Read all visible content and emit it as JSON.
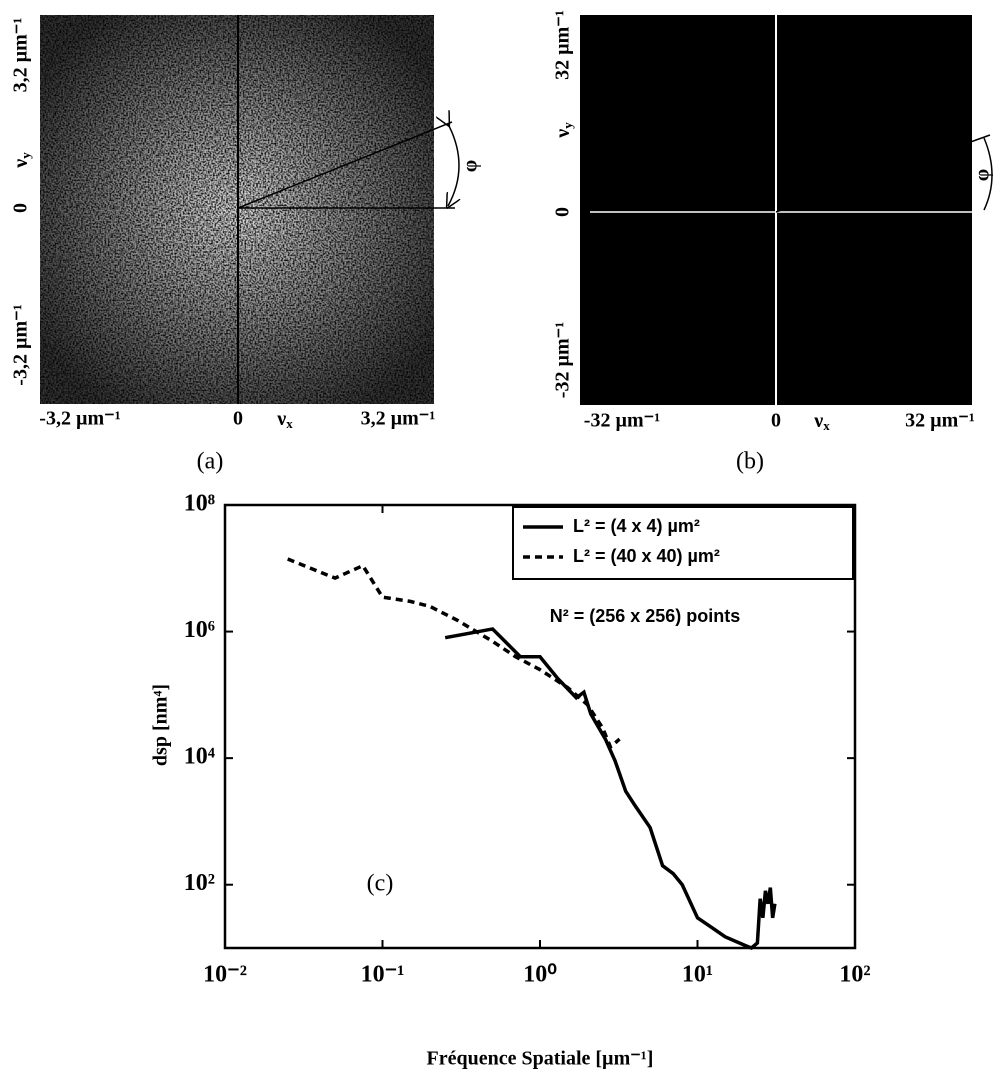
{
  "panel_a": {
    "y_top": "3,2 µm⁻¹",
    "y_axis": "ν",
    "y_axis_sub": "y",
    "y_zero": "0",
    "y_bottom": "-3,2 µm⁻¹",
    "x_left": "-3,2 µm⁻¹",
    "x_zero": "0",
    "x_axis": "ν",
    "x_axis_sub": "x",
    "x_right": "3,2 µm⁻¹",
    "angle": "φ",
    "caption": "(a)"
  },
  "panel_b": {
    "y_top": "32 µm⁻¹",
    "y_axis": "ν",
    "y_axis_sub": "y",
    "y_zero": "0",
    "y_bottom": "-32 µm⁻¹",
    "x_left": "-32 µm⁻¹",
    "x_zero": "0",
    "x_axis": "ν",
    "x_axis_sub": "x",
    "x_right": "32 µm⁻¹",
    "angle": "φ",
    "caption": "(b)"
  },
  "chart_data": {
    "type": "line",
    "xlabel": "Fréquence Spatiale [µm⁻¹]",
    "ylabel": "dsp [nm⁴]",
    "annotations": [
      "N² = (256 x 256) points",
      "(c)"
    ],
    "xscale": "log",
    "yscale": "log",
    "xlim": [
      0.01,
      100
    ],
    "ylim": [
      10,
      100000000
    ],
    "xticks": [
      {
        "value": 0.01,
        "label": "10⁻²"
      },
      {
        "value": 0.1,
        "label": "10⁻¹"
      },
      {
        "value": 1,
        "label": "10⁰"
      },
      {
        "value": 10,
        "label": "10¹"
      },
      {
        "value": 100,
        "label": "10²"
      }
    ],
    "yticks": [
      {
        "value": 100,
        "label": "10²"
      },
      {
        "value": 10000,
        "label": "10⁴"
      },
      {
        "value": 1000000,
        "label": "10⁶"
      },
      {
        "value": 100000000,
        "label": "10⁸"
      }
    ],
    "legend": "upper right",
    "series": [
      {
        "name": "L² = (4 x 4) µm²",
        "color": "#000000",
        "style": "solid",
        "x": [
          0.25,
          0.5,
          0.75,
          1.0,
          1.3,
          1.7,
          1.9,
          2.1,
          2.6,
          3,
          3.5,
          4,
          5,
          6,
          7,
          8,
          10,
          12,
          15,
          20,
          22,
          24,
          25,
          26,
          27,
          28,
          29,
          30,
          31
        ],
        "values": [
          800000,
          1100000,
          400000,
          400000,
          180000,
          90000,
          110000,
          50000,
          20000,
          9000,
          3000,
          1800,
          800,
          200,
          150,
          100,
          30,
          22,
          15,
          11,
          10,
          12,
          60,
          30,
          80,
          50,
          90,
          30,
          50
        ]
      },
      {
        "name": "L² = (40 x 40) µm²",
        "color": "#000000",
        "style": "dashed",
        "x": [
          0.025,
          0.05,
          0.075,
          0.1,
          0.15,
          0.2,
          0.3,
          0.5,
          0.7,
          1,
          1.5,
          2,
          2.5,
          2.8,
          3.2
        ],
        "values": [
          14000000,
          7000000,
          11000000,
          3500000,
          3000000,
          2500000,
          1500000,
          700000,
          400000,
          250000,
          130000,
          70000,
          30000,
          15000,
          20000
        ]
      }
    ]
  }
}
